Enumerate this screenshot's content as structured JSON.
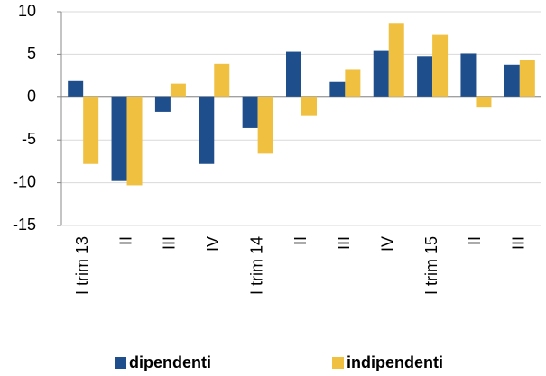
{
  "chart_data": {
    "type": "bar",
    "categories": [
      "I trim 13",
      "II",
      "III",
      "IV",
      "I trim 14",
      "II",
      "III",
      "IV",
      "I trim 15",
      "II",
      "III"
    ],
    "series": [
      {
        "name": "dipendenti",
        "color": "#1f4e8c",
        "values": [
          1.9,
          -9.8,
          -1.7,
          -7.8,
          -3.6,
          5.3,
          1.8,
          5.4,
          4.8,
          5.1,
          3.8
        ]
      },
      {
        "name": "indipendenti",
        "color": "#f0c040",
        "values": [
          -7.8,
          -10.3,
          1.6,
          3.9,
          -6.6,
          -2.2,
          3.2,
          8.6,
          7.3,
          -1.2,
          4.4
        ]
      }
    ],
    "ylim": [
      -15,
      10
    ],
    "yticks": [
      -15,
      -10,
      -5,
      0,
      5,
      10
    ],
    "grid": true
  }
}
